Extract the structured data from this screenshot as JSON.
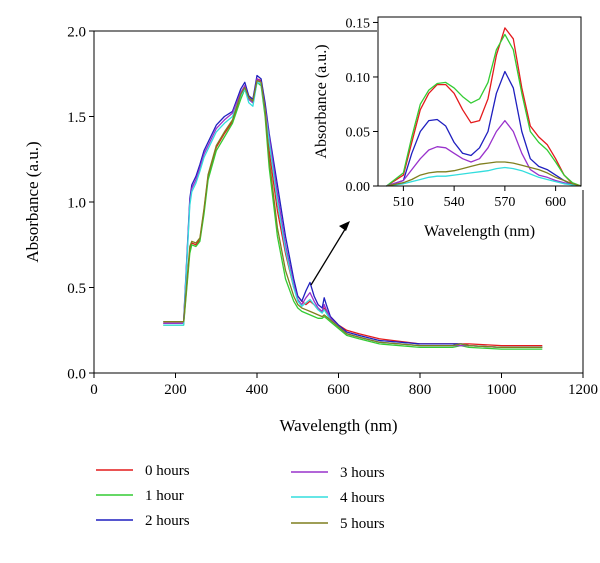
{
  "chart_data": [
    {
      "type": "line",
      "xlabel": "Wavelength (nm)",
      "ylabel": "Absorbance (a.u.)",
      "xlim": [
        0,
        1200
      ],
      "ylim": [
        0,
        2.0
      ],
      "xticks": [
        0,
        200,
        400,
        600,
        800,
        1000,
        1200
      ],
      "yticks": [
        0.0,
        0.5,
        1.0,
        1.5,
        2.0
      ],
      "ytick_labels": [
        "0.0",
        "0.5",
        "1.0",
        "1.5",
        "2.0"
      ],
      "grid": false,
      "legend_position": "bottom",
      "series": [
        {
          "name": "0 hours",
          "color": "#e41a1c",
          "x": [
            170,
            220,
            235,
            240,
            250,
            260,
            270,
            280,
            300,
            320,
            340,
            360,
            370,
            380,
            390,
            400,
            410,
            420,
            430,
            450,
            470,
            490,
            500,
            510,
            520,
            530,
            540,
            550,
            560,
            565,
            570,
            580,
            600,
            620,
            650,
            700,
            800,
            880,
            900,
            920,
            1000,
            1050,
            1100
          ],
          "y": [
            0.29,
            0.29,
            0.72,
            0.76,
            0.75,
            0.78,
            0.95,
            1.15,
            1.32,
            1.4,
            1.47,
            1.62,
            1.68,
            1.62,
            1.6,
            1.72,
            1.71,
            1.55,
            1.3,
            0.95,
            0.7,
            0.5,
            0.45,
            0.42,
            0.4,
            0.42,
            0.4,
            0.37,
            0.36,
            0.38,
            0.36,
            0.33,
            0.28,
            0.25,
            0.23,
            0.2,
            0.17,
            0.17,
            0.17,
            0.17,
            0.16,
            0.16,
            0.16
          ]
        },
        {
          "name": "1 hour",
          "color": "#33cc33",
          "x": [
            170,
            220,
            235,
            240,
            250,
            260,
            270,
            280,
            300,
            320,
            340,
            360,
            370,
            380,
            390,
            400,
            410,
            420,
            430,
            450,
            470,
            490,
            500,
            510,
            520,
            530,
            540,
            550,
            560,
            565,
            570,
            580,
            600,
            620,
            650,
            700,
            800,
            880,
            900,
            920,
            1000,
            1050,
            1100
          ],
          "y": [
            0.28,
            0.28,
            0.7,
            0.75,
            0.74,
            0.77,
            0.93,
            1.13,
            1.3,
            1.38,
            1.46,
            1.6,
            1.66,
            1.6,
            1.58,
            1.7,
            1.68,
            1.5,
            1.2,
            0.8,
            0.55,
            0.42,
            0.38,
            0.36,
            0.35,
            0.34,
            0.33,
            0.32,
            0.32,
            0.33,
            0.32,
            0.3,
            0.26,
            0.22,
            0.2,
            0.17,
            0.15,
            0.15,
            0.16,
            0.15,
            0.14,
            0.14,
            0.14
          ]
        },
        {
          "name": "2 hours",
          "color": "#1f1fbf",
          "x": [
            170,
            220,
            235,
            240,
            250,
            260,
            270,
            280,
            300,
            320,
            340,
            360,
            370,
            380,
            390,
            400,
            410,
            420,
            430,
            450,
            470,
            490,
            500,
            510,
            520,
            530,
            540,
            550,
            560,
            565,
            570,
            580,
            600,
            620,
            650,
            700,
            800,
            880,
            900,
            920,
            1000,
            1050,
            1100
          ],
          "y": [
            0.3,
            0.3,
            1.02,
            1.1,
            1.15,
            1.22,
            1.3,
            1.35,
            1.45,
            1.5,
            1.53,
            1.66,
            1.7,
            1.62,
            1.6,
            1.74,
            1.72,
            1.58,
            1.4,
            1.1,
            0.8,
            0.55,
            0.45,
            0.42,
            0.48,
            0.53,
            0.45,
            0.4,
            0.38,
            0.44,
            0.4,
            0.33,
            0.28,
            0.24,
            0.22,
            0.19,
            0.17,
            0.17,
            0.17,
            0.16,
            0.15,
            0.15,
            0.15
          ]
        },
        {
          "name": "3 hours",
          "color": "#9932cc",
          "x": [
            170,
            220,
            235,
            240,
            250,
            260,
            270,
            280,
            300,
            320,
            340,
            360,
            370,
            380,
            390,
            400,
            410,
            420,
            430,
            450,
            470,
            490,
            500,
            510,
            520,
            530,
            540,
            550,
            560,
            565,
            570,
            580,
            600,
            620,
            650,
            700,
            800,
            880,
            900,
            920,
            1000,
            1050,
            1100
          ],
          "y": [
            0.29,
            0.29,
            1.0,
            1.08,
            1.13,
            1.2,
            1.28,
            1.33,
            1.43,
            1.48,
            1.52,
            1.64,
            1.68,
            1.6,
            1.58,
            1.72,
            1.7,
            1.55,
            1.38,
            1.05,
            0.75,
            0.52,
            0.43,
            0.4,
            0.44,
            0.47,
            0.42,
            0.38,
            0.36,
            0.4,
            0.37,
            0.32,
            0.27,
            0.23,
            0.21,
            0.18,
            0.16,
            0.16,
            0.16,
            0.16,
            0.15,
            0.15,
            0.15
          ]
        },
        {
          "name": "4 hours",
          "color": "#33dddd",
          "x": [
            170,
            220,
            235,
            240,
            250,
            260,
            270,
            280,
            300,
            320,
            340,
            360,
            370,
            380,
            390,
            400,
            410,
            420,
            430,
            450,
            470,
            490,
            500,
            510,
            520,
            530,
            540,
            550,
            560,
            565,
            570,
            580,
            600,
            620,
            650,
            700,
            800,
            880,
            900,
            920,
            1000,
            1050,
            1100
          ],
          "y": [
            0.28,
            0.28,
            0.98,
            1.06,
            1.11,
            1.18,
            1.26,
            1.31,
            1.41,
            1.46,
            1.5,
            1.62,
            1.66,
            1.58,
            1.56,
            1.7,
            1.69,
            1.53,
            1.35,
            1.0,
            0.72,
            0.5,
            0.42,
            0.39,
            0.41,
            0.43,
            0.4,
            0.37,
            0.35,
            0.37,
            0.35,
            0.31,
            0.27,
            0.23,
            0.21,
            0.18,
            0.16,
            0.16,
            0.17,
            0.16,
            0.15,
            0.15,
            0.15
          ]
        },
        {
          "name": "5 hours",
          "color": "#7f7f1f",
          "x": [
            170,
            220,
            235,
            240,
            250,
            260,
            270,
            280,
            300,
            320,
            340,
            360,
            370,
            380,
            390,
            400,
            410,
            420,
            430,
            450,
            470,
            490,
            500,
            510,
            520,
            530,
            540,
            550,
            560,
            565,
            570,
            580,
            600,
            620,
            650,
            700,
            800,
            880,
            900,
            920,
            1000,
            1050,
            1100
          ],
          "y": [
            0.3,
            0.3,
            0.74,
            0.77,
            0.76,
            0.79,
            0.96,
            1.16,
            1.33,
            1.41,
            1.48,
            1.63,
            1.67,
            1.61,
            1.59,
            1.71,
            1.7,
            1.54,
            1.25,
            0.85,
            0.6,
            0.45,
            0.4,
            0.38,
            0.37,
            0.36,
            0.35,
            0.34,
            0.33,
            0.34,
            0.33,
            0.31,
            0.27,
            0.23,
            0.21,
            0.18,
            0.16,
            0.16,
            0.17,
            0.16,
            0.15,
            0.15,
            0.15
          ]
        }
      ]
    },
    {
      "type": "line",
      "xlabel": "Wavelength (nm)",
      "ylabel": "Absorbance (a.u.)",
      "xlim": [
        495,
        615
      ],
      "ylim": [
        0,
        0.155
      ],
      "xticks": [
        510,
        540,
        570,
        600
      ],
      "yticks": [
        0.0,
        0.05,
        0.1,
        0.15
      ],
      "ytick_labels": [
        "0.00",
        "0.05",
        "0.10",
        "0.15"
      ],
      "grid": false,
      "series": [
        {
          "name": "0 hours",
          "color": "#e41a1c",
          "x": [
            500,
            510,
            515,
            520,
            525,
            530,
            535,
            540,
            545,
            550,
            555,
            560,
            565,
            570,
            575,
            580,
            585,
            590,
            595,
            600,
            605,
            610,
            615
          ],
          "y": [
            0.0,
            0.01,
            0.04,
            0.07,
            0.085,
            0.093,
            0.093,
            0.085,
            0.07,
            0.058,
            0.06,
            0.08,
            0.12,
            0.145,
            0.135,
            0.09,
            0.055,
            0.045,
            0.038,
            0.025,
            0.01,
            0.002,
            0.0
          ]
        },
        {
          "name": "1 hour",
          "color": "#33cc33",
          "x": [
            500,
            510,
            515,
            520,
            525,
            530,
            535,
            540,
            545,
            550,
            555,
            560,
            565,
            570,
            575,
            580,
            585,
            590,
            595,
            600,
            605,
            610,
            615
          ],
          "y": [
            0.0,
            0.012,
            0.045,
            0.075,
            0.088,
            0.094,
            0.095,
            0.09,
            0.082,
            0.076,
            0.08,
            0.095,
            0.125,
            0.139,
            0.125,
            0.085,
            0.05,
            0.04,
            0.033,
            0.022,
            0.01,
            0.003,
            0.0
          ]
        },
        {
          "name": "2 hours",
          "color": "#1f1fbf",
          "x": [
            500,
            510,
            515,
            520,
            525,
            530,
            535,
            540,
            545,
            550,
            555,
            560,
            565,
            570,
            575,
            580,
            585,
            590,
            595,
            600,
            605,
            610,
            615
          ],
          "y": [
            0.0,
            0.005,
            0.03,
            0.05,
            0.06,
            0.061,
            0.055,
            0.04,
            0.03,
            0.028,
            0.035,
            0.05,
            0.085,
            0.105,
            0.09,
            0.05,
            0.025,
            0.018,
            0.015,
            0.01,
            0.005,
            0.001,
            0.0
          ]
        },
        {
          "name": "3 hours",
          "color": "#9932cc",
          "x": [
            500,
            510,
            515,
            520,
            525,
            530,
            535,
            540,
            545,
            550,
            555,
            560,
            565,
            570,
            575,
            580,
            585,
            590,
            595,
            600,
            605,
            610,
            615
          ],
          "y": [
            0.0,
            0.005,
            0.015,
            0.025,
            0.033,
            0.036,
            0.035,
            0.03,
            0.025,
            0.022,
            0.025,
            0.035,
            0.05,
            0.06,
            0.05,
            0.03,
            0.015,
            0.01,
            0.008,
            0.005,
            0.003,
            0.001,
            0.0
          ]
        },
        {
          "name": "4 hours",
          "color": "#33dddd",
          "x": [
            500,
            510,
            515,
            520,
            525,
            530,
            535,
            540,
            545,
            550,
            555,
            560,
            565,
            570,
            575,
            580,
            585,
            590,
            595,
            600,
            605,
            610,
            615
          ],
          "y": [
            0.0,
            0.002,
            0.004,
            0.006,
            0.008,
            0.009,
            0.009,
            0.01,
            0.011,
            0.012,
            0.013,
            0.014,
            0.016,
            0.017,
            0.016,
            0.014,
            0.011,
            0.008,
            0.006,
            0.004,
            0.002,
            0.001,
            0.0
          ]
        },
        {
          "name": "5 hours",
          "color": "#7f7f1f",
          "x": [
            500,
            510,
            515,
            520,
            525,
            530,
            535,
            540,
            545,
            550,
            555,
            560,
            565,
            570,
            575,
            580,
            585,
            590,
            595,
            600,
            605,
            610,
            615
          ],
          "y": [
            0.0,
            0.003,
            0.006,
            0.01,
            0.012,
            0.013,
            0.013,
            0.014,
            0.016,
            0.018,
            0.02,
            0.021,
            0.022,
            0.022,
            0.021,
            0.019,
            0.017,
            0.015,
            0.012,
            0.008,
            0.005,
            0.002,
            0.0
          ]
        }
      ]
    }
  ]
}
